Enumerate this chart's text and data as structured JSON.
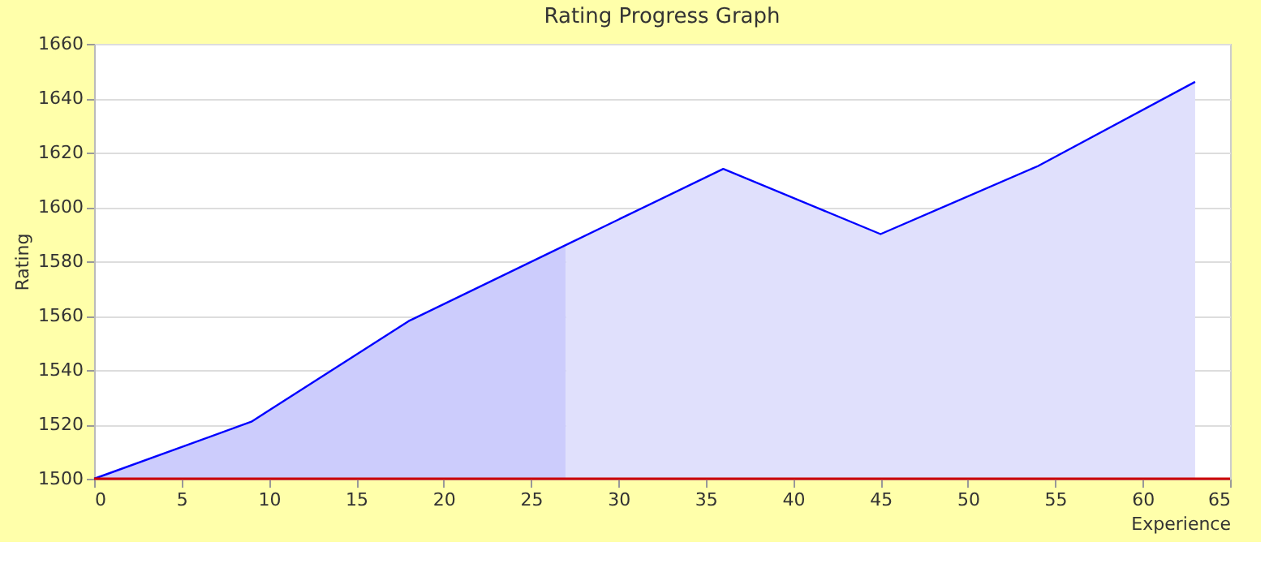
{
  "chart_data": {
    "type": "area",
    "title": "Rating Progress Graph",
    "xlabel": "Experience",
    "ylabel": "Rating",
    "series": [
      {
        "color": "#ccccfc",
        "x": [
          0,
          9,
          18,
          27
        ],
        "values": [
          1500,
          1521,
          1558,
          1586
        ]
      },
      {
        "color": "#e0e0fc",
        "x": [
          27,
          36,
          45,
          54,
          63
        ],
        "values": [
          1586,
          1614,
          1590,
          1615,
          1646
        ]
      },
      {
        "type": "line",
        "color": "#0000ff",
        "x": [
          0,
          9,
          18,
          27,
          36,
          45,
          54,
          63
        ],
        "values": [
          1500,
          1521,
          1558,
          1586,
          1614,
          1590,
          1615,
          1646
        ]
      }
    ],
    "xlim": [
      0,
      65
    ],
    "xticks": [
      0,
      5,
      10,
      15,
      20,
      25,
      30,
      35,
      40,
      45,
      50,
      55,
      60,
      65
    ],
    "ylim": [
      1500,
      1660
    ],
    "yticks": [
      1500,
      1520,
      1540,
      1560,
      1580,
      1600,
      1620,
      1640,
      1660
    ],
    "ref_lines": [
      {
        "axis": "y",
        "value": 1500,
        "color": "#cc0000"
      }
    ],
    "grid": "y"
  }
}
